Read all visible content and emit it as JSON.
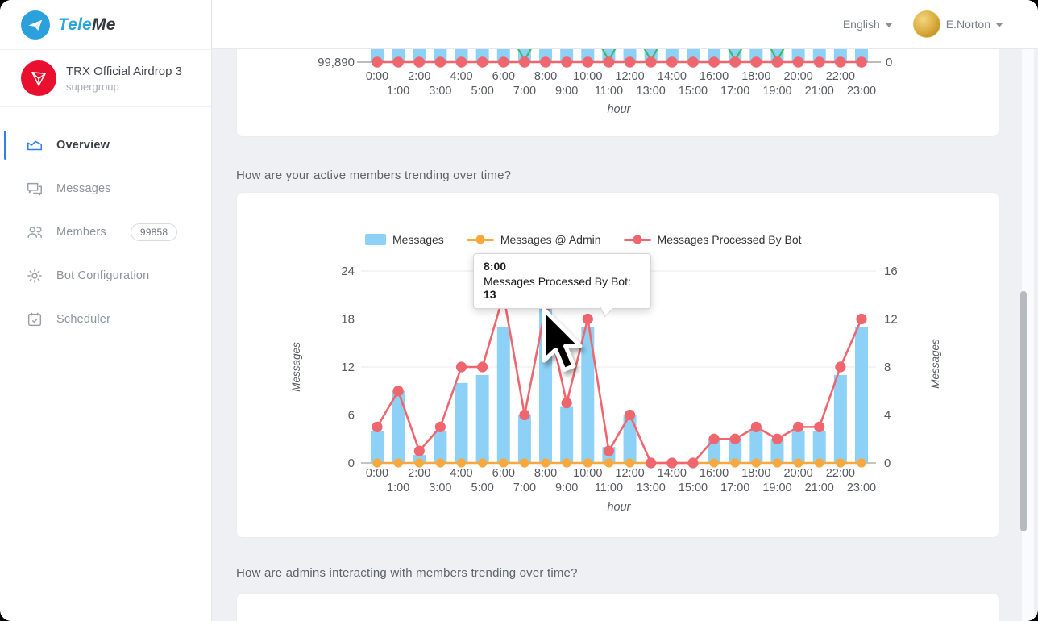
{
  "brand": {
    "name_part1": "Tele",
    "name_part2": "Me"
  },
  "header": {
    "language": "English",
    "user": "E.Norton"
  },
  "sidebar": {
    "group": {
      "name": "TRX Official Airdrop 3",
      "type": "supergroup"
    },
    "items": [
      {
        "label": "Overview",
        "active": true
      },
      {
        "label": "Messages"
      },
      {
        "label": "Members",
        "badge": "99858"
      },
      {
        "label": "Bot Configuration"
      },
      {
        "label": "Scheduler"
      }
    ]
  },
  "main": {
    "section1_title": "How are your active members trending over time?",
    "section2_title": "How are admins interacting with members trending over time?"
  },
  "colors": {
    "bars": "#8dd2f6",
    "admin_line": "#faa83e",
    "bot_line": "#f0666e",
    "members_line": "#3cb96a",
    "accent": "#2f80ed",
    "brand_blue": "#2aa4dc",
    "tron_red": "#e8102e"
  },
  "chart_data": [
    {
      "type": "bar+line",
      "note_visible_portion": "bottom edge of members trend chart, bars cut off at top",
      "categories": [
        "0:00",
        "1:00",
        "2:00",
        "3:00",
        "4:00",
        "5:00",
        "6:00",
        "7:00",
        "8:00",
        "9:00",
        "10:00",
        "11:00",
        "12:00",
        "13:00",
        "14:00",
        "15:00",
        "16:00",
        "17:00",
        "18:00",
        "19:00",
        "20:00",
        "21:00",
        "22:00",
        "23:00"
      ],
      "left_tick_label": "99,890",
      "right_tick_label": "0",
      "xlabel": "hour",
      "red_line_constant_at_axis": true,
      "green_dip_hours": [
        7,
        11,
        13,
        17,
        19
      ]
    },
    {
      "type": "bar+line",
      "categories": [
        "0:00",
        "1:00",
        "2:00",
        "3:00",
        "4:00",
        "5:00",
        "6:00",
        "7:00",
        "8:00",
        "9:00",
        "10:00",
        "11:00",
        "12:00",
        "13:00",
        "14:00",
        "15:00",
        "16:00",
        "17:00",
        "18:00",
        "19:00",
        "20:00",
        "21:00",
        "22:00",
        "23:00"
      ],
      "series": [
        {
          "name": "Messages",
          "type": "bar",
          "axis": "left",
          "values": [
            4,
            9,
            1,
            4,
            10,
            11,
            17,
            6,
            21,
            7,
            17,
            2,
            6,
            0,
            0,
            0,
            3,
            3,
            4,
            3,
            4,
            4,
            11,
            17
          ]
        },
        {
          "name": "Messages @ Admin",
          "type": "line",
          "axis": "right",
          "values": [
            0,
            0,
            0,
            0,
            0,
            0,
            0,
            0,
            0,
            0,
            0,
            0,
            0,
            0,
            0,
            0,
            0,
            0,
            0,
            0,
            0,
            0,
            0,
            0
          ]
        },
        {
          "name": "Messages Processed By Bot",
          "type": "line",
          "axis": "right",
          "values": [
            3,
            6,
            1,
            3,
            8,
            8,
            14,
            4,
            13,
            5,
            12,
            1,
            4,
            0,
            0,
            0,
            2,
            2,
            3,
            2,
            3,
            3,
            8,
            12
          ]
        }
      ],
      "left_axis": {
        "label": "Messages",
        "ticks": [
          0,
          6,
          12,
          18,
          24
        ],
        "max": 24
      },
      "right_axis": {
        "label": "Messages",
        "ticks": [
          0,
          4,
          8,
          12,
          16
        ],
        "max": 16
      },
      "xlabel": "hour",
      "legend_position": "top",
      "grid": true,
      "tooltip": {
        "title": "8:00",
        "label": "Messages Processed By Bot: ",
        "value": "13",
        "hour_index": 8
      }
    }
  ]
}
